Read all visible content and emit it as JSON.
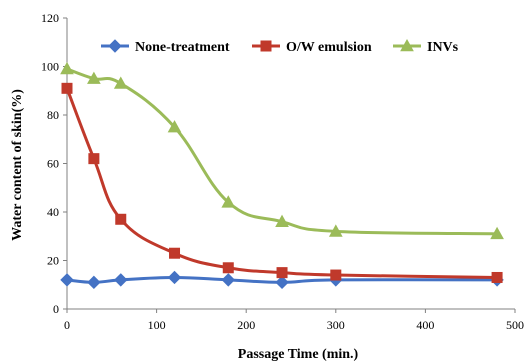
{
  "chart_data": {
    "type": "line",
    "title": "",
    "xlabel": "Passage Time (min.)",
    "ylabel": "Water content of skin(%)",
    "xlim": [
      0,
      500
    ],
    "ylim": [
      0,
      120
    ],
    "xticks": [
      0,
      100,
      200,
      300,
      400,
      500
    ],
    "yticks": [
      0,
      20,
      40,
      60,
      80,
      100,
      120
    ],
    "grid": false,
    "legend_position": "top",
    "series": [
      {
        "name": "None-treatment",
        "color": "#4472C4",
        "marker": "diamond",
        "x": [
          0,
          30,
          60,
          120,
          180,
          240,
          300,
          480
        ],
        "y": [
          12,
          11,
          12,
          13,
          12,
          11,
          12,
          12
        ]
      },
      {
        "name": "O/W emulsion",
        "color": "#C0392B",
        "marker": "square",
        "x": [
          0,
          30,
          60,
          120,
          180,
          240,
          300,
          480
        ],
        "y": [
          91,
          62,
          37,
          23,
          17,
          15,
          14,
          13
        ]
      },
      {
        "name": "INVs",
        "color": "#9BBB59",
        "marker": "triangle",
        "x": [
          0,
          30,
          60,
          120,
          180,
          240,
          300,
          480
        ],
        "y": [
          99,
          95,
          93,
          75,
          44,
          36,
          32,
          31
        ]
      }
    ]
  }
}
